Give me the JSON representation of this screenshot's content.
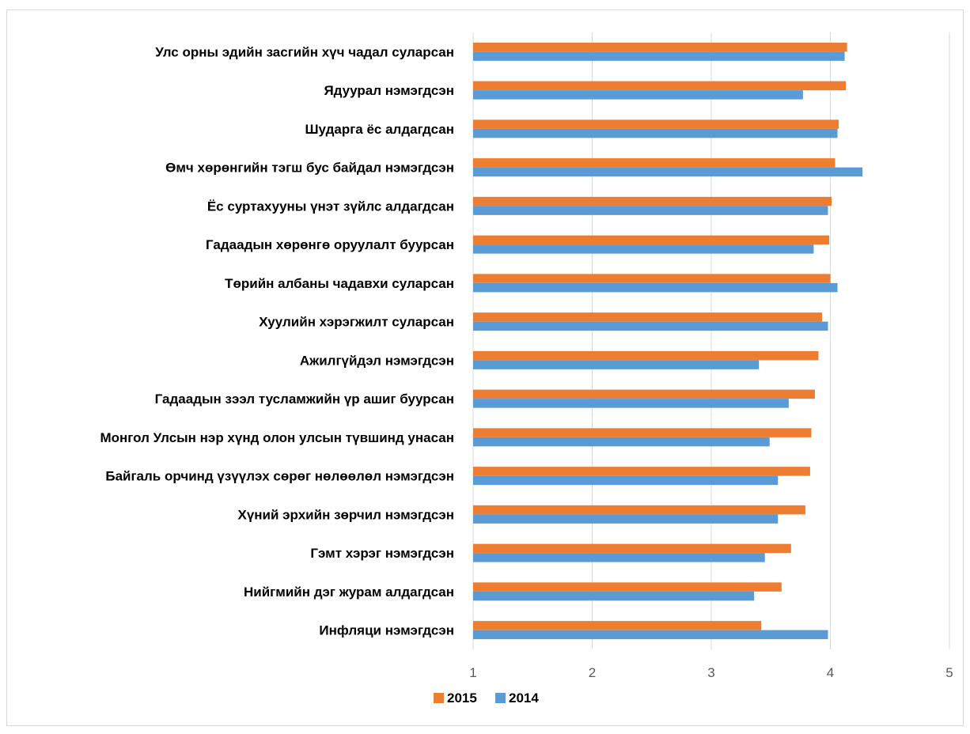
{
  "chart_data": {
    "type": "bar",
    "orientation": "horizontal",
    "title": "",
    "xlabel": "",
    "ylabel": "",
    "xlim": [
      1,
      5
    ],
    "x_ticks": [
      "1",
      "2",
      "3",
      "4",
      "5"
    ],
    "grid": true,
    "legend_position": "bottom",
    "categories": [
      "Улс орны эдийн засгийн хүч чадал суларсан",
      "Ядуурал нэмэгдсэн",
      "Шударга ёс алдагдсан",
      "Өмч хөрөнгийн тэгш бус байдал нэмэгдсэн",
      "Ёс суртахууны үнэт зүйлс алдагдсан",
      "Гадаадын хөрөнгө оруулалт буурсан",
      "Төрийн албаны чадавхи суларсан",
      "Хуулийн хэрэгжилт суларсан",
      "Ажилгүйдэл нэмэгдсэн",
      "Гадаадын зээл тусламжийн үр ашиг буурсан",
      "Монгол Улсын нэр хүнд олон улсын түвшинд унасан",
      "Байгаль орчинд үзүүлэх сөрөг нөлөөлөл нэмэгдсэн",
      "Хүний эрхийн зөрчил нэмэгдсэн",
      "Гэмт хэрэг нэмэгдсэн",
      "Нийгмийн дэг журам алдагдсан",
      "Инфляци нэмэгдсэн"
    ],
    "series": [
      {
        "name": "2015",
        "color": "#ED7D31",
        "values": [
          4.14,
          4.13,
          4.07,
          4.04,
          4.01,
          3.99,
          4.0,
          3.93,
          3.9,
          3.87,
          3.84,
          3.83,
          3.79,
          3.67,
          3.59,
          3.42
        ]
      },
      {
        "name": "2014",
        "color": "#5B9BD5",
        "values": [
          4.12,
          3.77,
          4.06,
          4.27,
          3.98,
          3.86,
          4.06,
          3.98,
          3.4,
          3.65,
          3.49,
          3.56,
          3.56,
          3.45,
          3.36,
          3.98
        ]
      }
    ]
  }
}
